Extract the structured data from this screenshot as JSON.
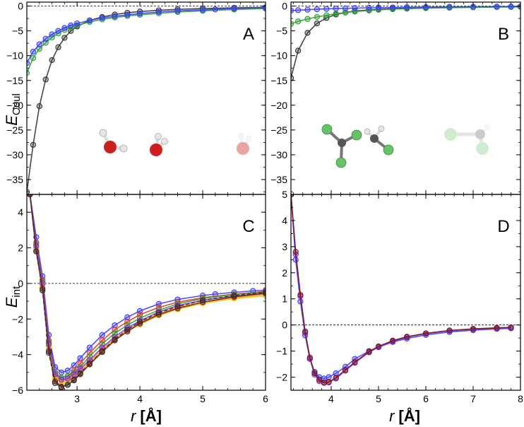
{
  "figure": {
    "xlabel_var": "r",
    "xlabel_unit": "[Å]",
    "ylabel_top_var": "E",
    "ylabel_top_sub": "Coul",
    "ylabel_bottom_var": "E",
    "ylabel_bottom_sub": "int"
  },
  "colors": {
    "black": "#333333",
    "blue": "#3c3cff",
    "green": "#2ea02e",
    "red": "#e8322a",
    "orange": "#ff9900",
    "yellow": "#e8c400",
    "purple": "#8a2be2",
    "darkred": "#7a1818",
    "oxygen": "#cc1f1f",
    "hydrogen": "#dddddd",
    "carbon": "#555555",
    "chlorine": "#66c266"
  },
  "chart_data": [
    {
      "id": "A",
      "label": "A",
      "type": "line",
      "xlim": [
        2.2,
        6.0
      ],
      "ylim": [
        -38,
        0.8
      ],
      "xticks": [
        3,
        4,
        5,
        6
      ],
      "yticks": [
        0,
        -5,
        -10,
        -15,
        -20,
        -25,
        -30,
        -35
      ],
      "show_xtick_labels": false,
      "zero_line": true,
      "series": [
        {
          "name": "black",
          "color": "#333333",
          "x": [
            2.2,
            2.3,
            2.4,
            2.5,
            2.6,
            2.7,
            2.8,
            2.9,
            3.0,
            3.2,
            3.4,
            3.6,
            3.8,
            4.0,
            4.3,
            4.6,
            5.0,
            5.5,
            6.0
          ],
          "y": [
            -37.5,
            -28.0,
            -20.2,
            -14.8,
            -10.9,
            -8.3,
            -6.4,
            -5.0,
            -4.1,
            -2.9,
            -2.2,
            -1.7,
            -1.35,
            -1.1,
            -0.85,
            -0.65,
            -0.5,
            -0.35,
            -0.25
          ]
        },
        {
          "name": "green",
          "color": "#2ea02e",
          "x": [
            2.2,
            2.3,
            2.4,
            2.5,
            2.6,
            2.7,
            2.8,
            2.9,
            3.0,
            3.2,
            3.4,
            3.6,
            3.8,
            4.0,
            4.3,
            4.6,
            5.0,
            5.5,
            6.0
          ],
          "y": [
            -13.5,
            -10.5,
            -8.6,
            -7.4,
            -6.3,
            -5.5,
            -4.8,
            -4.3,
            -3.9,
            -3.2,
            -2.7,
            -2.3,
            -2.0,
            -1.75,
            -1.45,
            -1.2,
            -0.95,
            -0.7,
            -0.5
          ]
        },
        {
          "name": "blue",
          "color": "#3c3cff",
          "x": [
            2.2,
            2.3,
            2.4,
            2.5,
            2.6,
            2.7,
            2.8,
            2.9,
            3.0,
            3.2,
            3.4,
            3.6,
            3.8,
            4.0,
            4.3,
            4.6,
            5.0,
            5.2,
            5.5,
            6.0
          ],
          "y": [
            -11.5,
            -9.2,
            -7.7,
            -6.6,
            -5.7,
            -5.0,
            -4.4,
            -3.9,
            -3.5,
            -2.9,
            -2.4,
            -2.05,
            -1.75,
            -1.5,
            -1.2,
            -0.95,
            -0.75,
            -0.65,
            -0.5,
            -0.35
          ]
        }
      ]
    },
    {
      "id": "B",
      "label": "B",
      "type": "line",
      "xlim": [
        3.15,
        8.0
      ],
      "ylim": [
        -38,
        0.8
      ],
      "xticks": [
        4,
        5,
        6,
        7,
        8
      ],
      "yticks": [
        0,
        -5,
        -10,
        -15,
        -20,
        -25,
        -30,
        -35
      ],
      "show_xtick_labels": false,
      "zero_line": true,
      "series": [
        {
          "name": "black",
          "color": "#333333",
          "x": [
            3.15,
            3.3,
            3.5,
            3.7,
            3.9,
            4.1,
            4.3,
            4.5,
            4.8,
            5.0,
            5.3,
            5.6,
            6.0,
            6.5,
            7.0,
            7.5,
            7.8,
            8.0
          ],
          "y": [
            -14.5,
            -9.0,
            -5.4,
            -3.5,
            -2.4,
            -1.7,
            -1.3,
            -1.0,
            -0.75,
            -0.62,
            -0.5,
            -0.42,
            -0.33,
            -0.26,
            -0.2,
            -0.16,
            -0.14,
            -0.12
          ]
        },
        {
          "name": "green",
          "color": "#2ea02e",
          "x": [
            3.15,
            3.3,
            3.5,
            3.7,
            3.9,
            4.1,
            4.3,
            4.5,
            4.8,
            5.0,
            5.3,
            5.6,
            6.0,
            6.5,
            7.0,
            7.5,
            7.8,
            8.0
          ],
          "y": [
            -3.6,
            -3.1,
            -2.6,
            -2.2,
            -1.85,
            -1.55,
            -1.3,
            -1.1,
            -0.88,
            -0.75,
            -0.62,
            -0.52,
            -0.42,
            -0.33,
            -0.26,
            -0.2,
            -0.18,
            -0.16
          ]
        },
        {
          "name": "blue",
          "color": "#3c3cff",
          "x": [
            3.15,
            3.3,
            3.5,
            3.7,
            3.9,
            4.1,
            4.3,
            4.5,
            4.8,
            5.0,
            5.3,
            5.6,
            6.0,
            6.5,
            7.0,
            7.5,
            7.8,
            8.0
          ],
          "y": [
            -0.9,
            -0.82,
            -0.72,
            -0.64,
            -0.57,
            -0.5,
            -0.45,
            -0.4,
            -0.34,
            -0.31,
            -0.27,
            -0.23,
            -0.2,
            -0.16,
            -0.13,
            -0.11,
            -0.1,
            -0.09
          ]
        }
      ]
    },
    {
      "id": "C",
      "label": "C",
      "type": "line",
      "xlim": [
        2.2,
        6.0
      ],
      "ylim": [
        -6,
        5
      ],
      "xticks": [
        3,
        4,
        5,
        6
      ],
      "yticks": [
        4,
        2,
        0,
        -2,
        -4,
        -6
      ],
      "show_xtick_labels": true,
      "zero_line": true,
      "series": [
        {
          "name": "blue",
          "color": "#3c3cff",
          "x": [
            2.25,
            2.35,
            2.45,
            2.55,
            2.65,
            2.75,
            2.85,
            2.95,
            3.05,
            3.2,
            3.4,
            3.6,
            3.8,
            4.0,
            4.3,
            4.6,
            5.0,
            5.2,
            5.5,
            5.8,
            6.0
          ],
          "y": [
            5.0,
            2.6,
            0.4,
            -2.9,
            -4.7,
            -5.0,
            -4.9,
            -4.6,
            -4.2,
            -3.6,
            -2.9,
            -2.35,
            -1.9,
            -1.55,
            -1.15,
            -0.9,
            -0.68,
            -0.6,
            -0.5,
            -0.42,
            -0.38
          ]
        },
        {
          "name": "red",
          "color": "#e8322a",
          "x": [
            2.25,
            2.35,
            2.45,
            2.55,
            2.65,
            2.75,
            2.85,
            2.95,
            3.05,
            3.2,
            3.4,
            3.6,
            3.8,
            4.0,
            4.3,
            4.6,
            5.0,
            5.5,
            6.0
          ],
          "y": [
            5.0,
            2.3,
            0.2,
            -3.2,
            -5.0,
            -5.3,
            -5.2,
            -4.9,
            -4.5,
            -3.9,
            -3.2,
            -2.6,
            -2.15,
            -1.75,
            -1.35,
            -1.05,
            -0.8,
            -0.6,
            -0.45
          ]
        },
        {
          "name": "green",
          "color": "#2ea02e",
          "x": [
            2.25,
            2.35,
            2.45,
            2.55,
            2.65,
            2.75,
            2.85,
            2.95,
            3.05,
            3.2,
            3.4,
            3.6,
            3.8,
            4.0,
            4.3,
            4.6,
            5.0,
            5.5,
            6.0
          ],
          "y": [
            5.0,
            2.2,
            0.1,
            -3.3,
            -5.0,
            -5.3,
            -5.2,
            -5.0,
            -4.7,
            -4.1,
            -3.4,
            -2.8,
            -2.35,
            -1.95,
            -1.5,
            -1.15,
            -0.85,
            -0.62,
            -0.48
          ]
        },
        {
          "name": "orange",
          "color": "#ff9900",
          "x": [
            2.25,
            2.35,
            2.45,
            2.55,
            2.65,
            2.75,
            2.85,
            2.95,
            3.05,
            3.2,
            3.4,
            3.6,
            3.8,
            4.0,
            4.3,
            4.6,
            5.0,
            5.5,
            6.0
          ],
          "y": [
            5.0,
            2.0,
            -0.1,
            -3.5,
            -5.2,
            -5.5,
            -5.4,
            -5.2,
            -4.9,
            -4.4,
            -3.7,
            -3.1,
            -2.6,
            -2.2,
            -1.7,
            -1.35,
            -1.05,
            -0.8,
            -0.62
          ]
        },
        {
          "name": "yellow",
          "color": "#e8c400",
          "x": [
            2.25,
            2.35,
            2.45,
            2.55,
            2.65,
            2.75,
            2.85,
            2.95,
            3.05,
            3.2,
            3.4,
            3.6,
            3.8,
            4.0,
            4.3,
            4.6,
            5.0,
            5.5,
            6.0
          ],
          "y": [
            5.0,
            1.9,
            -0.2,
            -3.6,
            -5.3,
            -5.6,
            -5.5,
            -5.3,
            -5.0,
            -4.5,
            -3.8,
            -3.2,
            -2.7,
            -2.3,
            -1.8,
            -1.45,
            -1.12,
            -0.85,
            -0.7
          ]
        },
        {
          "name": "purple",
          "color": "#8a2be2",
          "x": [
            2.25,
            2.35,
            2.45,
            2.55,
            2.65,
            2.75,
            2.85,
            2.95,
            3.05,
            3.2,
            3.4,
            3.6,
            3.8,
            4.0,
            4.3,
            4.6,
            5.0,
            5.5,
            6.0
          ],
          "y": [
            5.0,
            2.1,
            0.0,
            -3.4,
            -5.1,
            -5.4,
            -5.35,
            -5.1,
            -4.8,
            -4.3,
            -3.6,
            -3.0,
            -2.5,
            -2.1,
            -1.6,
            -1.25,
            -0.95,
            -0.7,
            -0.55
          ]
        },
        {
          "name": "darkred",
          "color": "#7a1818",
          "x": [
            2.25,
            2.35,
            2.45,
            2.55,
            2.65,
            2.75,
            2.85,
            2.95,
            3.05,
            3.2,
            3.4,
            3.6,
            3.8,
            4.0,
            4.3,
            4.6,
            5.0,
            5.5,
            6.0
          ],
          "y": [
            5.0,
            1.8,
            -0.3,
            -3.8,
            -5.5,
            -5.8,
            -5.7,
            -5.45,
            -5.1,
            -4.55,
            -3.85,
            -3.2,
            -2.7,
            -2.25,
            -1.75,
            -1.4,
            -1.05,
            -0.75,
            -0.55
          ]
        },
        {
          "name": "black-dashed",
          "color": "#333333",
          "dashed": true,
          "x": [
            2.25,
            2.35,
            2.45,
            2.55,
            2.65,
            2.75,
            2.85,
            2.95,
            3.05,
            3.2,
            3.4,
            3.6,
            3.8,
            4.0,
            4.3,
            4.6,
            5.0,
            5.5,
            6.0
          ],
          "y": [
            5.0,
            1.8,
            -0.4,
            -3.9,
            -5.6,
            -5.85,
            -5.7,
            -5.4,
            -5.05,
            -4.5,
            -3.8,
            -3.15,
            -2.6,
            -2.15,
            -1.65,
            -1.3,
            -0.95,
            -0.68,
            -0.5
          ]
        }
      ]
    },
    {
      "id": "D",
      "label": "D",
      "type": "line",
      "xlim": [
        3.15,
        8.0
      ],
      "ylim": [
        -2.5,
        5
      ],
      "xticks": [
        4,
        5,
        6,
        7,
        8
      ],
      "yticks": [
        5,
        4,
        3,
        2,
        1,
        0,
        -1,
        -2
      ],
      "show_xtick_labels": true,
      "zero_line": true,
      "series": [
        {
          "name": "blue",
          "color": "#3c3cff",
          "x": [
            3.15,
            3.25,
            3.35,
            3.45,
            3.55,
            3.65,
            3.75,
            3.85,
            3.95,
            4.1,
            4.3,
            4.5,
            4.8,
            5.0,
            5.3,
            5.6,
            6.0,
            6.5,
            7.0,
            7.5,
            7.8
          ],
          "y": [
            5.0,
            2.5,
            0.9,
            -0.4,
            -1.3,
            -1.8,
            -2.0,
            -2.05,
            -2.0,
            -1.85,
            -1.6,
            -1.3,
            -1.0,
            -0.85,
            -0.65,
            -0.52,
            -0.38,
            -0.27,
            -0.2,
            -0.15,
            -0.13
          ]
        },
        {
          "name": "purple",
          "color": "#8a2be2",
          "x": [
            3.15,
            3.25,
            3.35,
            3.45,
            3.55,
            3.65,
            3.75,
            3.85,
            3.95,
            4.1,
            4.3,
            4.5,
            4.8,
            5.0,
            5.3,
            5.6,
            6.0,
            6.5,
            7.0,
            7.5,
            7.8
          ],
          "y": [
            5.0,
            2.7,
            1.1,
            -0.3,
            -1.3,
            -1.9,
            -2.15,
            -2.22,
            -2.2,
            -2.05,
            -1.75,
            -1.45,
            -1.05,
            -0.85,
            -0.62,
            -0.47,
            -0.33,
            -0.22,
            -0.16,
            -0.12,
            -0.1
          ]
        },
        {
          "name": "darkred",
          "color": "#7a1818",
          "x": [
            3.15,
            3.25,
            3.35,
            3.45,
            3.55,
            3.65,
            3.75,
            3.85,
            3.95,
            4.1,
            4.3,
            4.5,
            4.8,
            5.0,
            5.3,
            5.6,
            6.0,
            6.5,
            7.0,
            7.5,
            7.8
          ],
          "y": [
            5.0,
            2.8,
            1.15,
            -0.25,
            -1.25,
            -1.85,
            -2.1,
            -2.2,
            -2.18,
            -2.02,
            -1.72,
            -1.42,
            -1.02,
            -0.82,
            -0.6,
            -0.45,
            -0.32,
            -0.21,
            -0.15,
            -0.11,
            -0.09
          ]
        }
      ]
    }
  ]
}
